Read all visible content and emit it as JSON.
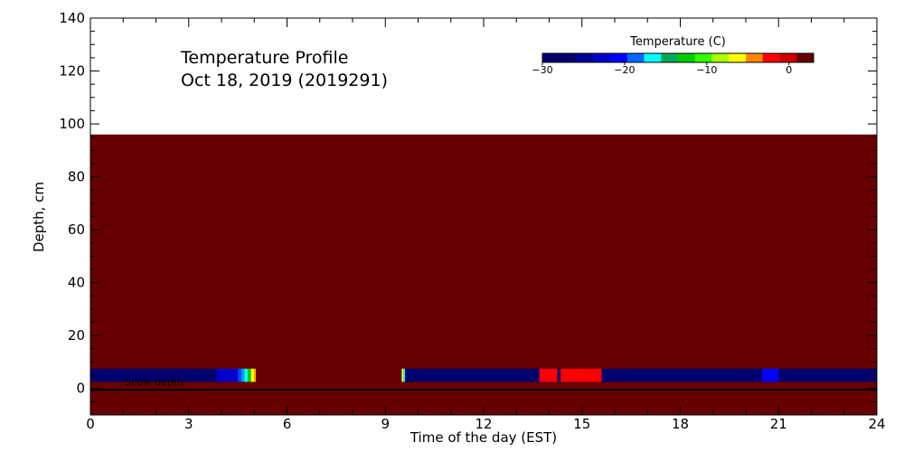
{
  "chart_data": {
    "type": "heatmap",
    "title_line1": "Temperature Profile",
    "title_line2": "Oct 18, 2019 (2019291)",
    "xlabel": "Time of the day (EST)",
    "ylabel": "Depth, cm",
    "xlim": [
      0,
      24
    ],
    "ylim": [
      -10,
      140
    ],
    "x_ticks": [
      "0",
      "3",
      "6",
      "9",
      "12",
      "15",
      "18",
      "21",
      "24"
    ],
    "y_ticks": [
      "0",
      "20",
      "40",
      "60",
      "80",
      "100",
      "120",
      "140"
    ],
    "x_tick_values": [
      0,
      3,
      6,
      9,
      12,
      15,
      18,
      21,
      24
    ],
    "y_tick_values": [
      0,
      20,
      40,
      60,
      80,
      100,
      120,
      140
    ],
    "field": {
      "x_range": [
        0,
        24
      ],
      "y_range": [
        -10,
        96
      ],
      "color": "#660000"
    },
    "surface_band": {
      "y_range": [
        2.5,
        7.5
      ],
      "segments": [
        {
          "x": [
            0,
            3.85
          ],
          "color": "#00006e"
        },
        {
          "x": [
            3.85,
            4.5
          ],
          "color": "#0000cc"
        },
        {
          "x": [
            4.5,
            4.6
          ],
          "color": "#0044ff"
        },
        {
          "x": [
            4.6,
            4.7
          ],
          "color": "#0099ff"
        },
        {
          "x": [
            4.7,
            4.8
          ],
          "color": "#00ffff"
        },
        {
          "x": [
            4.8,
            4.9
          ],
          "color": "#00cc00"
        },
        {
          "x": [
            4.9,
            5.0
          ],
          "color": "#ffff00"
        },
        {
          "x": [
            5.0,
            5.05
          ],
          "color": "#ffaa00"
        },
        {
          "x": [
            9.5,
            9.55
          ],
          "color": "#ffff00"
        },
        {
          "x": [
            9.55,
            9.6
          ],
          "color": "#00ffff"
        },
        {
          "x": [
            9.6,
            13.7
          ],
          "color": "#00006e"
        },
        {
          "x": [
            13.7,
            14.25
          ],
          "color": "#ff0000"
        },
        {
          "x": [
            14.25,
            14.35
          ],
          "color": "#00006e"
        },
        {
          "x": [
            14.35,
            15.6
          ],
          "color": "#ff0000"
        },
        {
          "x": [
            15.6,
            20.5
          ],
          "color": "#00006e"
        },
        {
          "x": [
            20.5,
            21.0
          ],
          "color": "#0000ff"
        },
        {
          "x": [
            21.0,
            24
          ],
          "color": "#00006e"
        }
      ]
    },
    "snow_depth": {
      "value": -0.5,
      "label": "Snow depth"
    },
    "colorbar": {
      "title": "Temperature (C)",
      "range": [
        -30,
        3
      ],
      "tick_labels": [
        "−30",
        "−20",
        "−10",
        "0"
      ],
      "tick_values": [
        -30,
        -20,
        -10,
        0
      ],
      "colors": [
        "#00006e",
        "#00006e",
        "#000096",
        "#0000cc",
        "#0000ff",
        "#0066ff",
        "#00ffff",
        "#00aa55",
        "#00cc00",
        "#33ff00",
        "#aaff00",
        "#ffff00",
        "#ff8800",
        "#ff0000",
        "#cc0000",
        "#660000"
      ]
    }
  }
}
